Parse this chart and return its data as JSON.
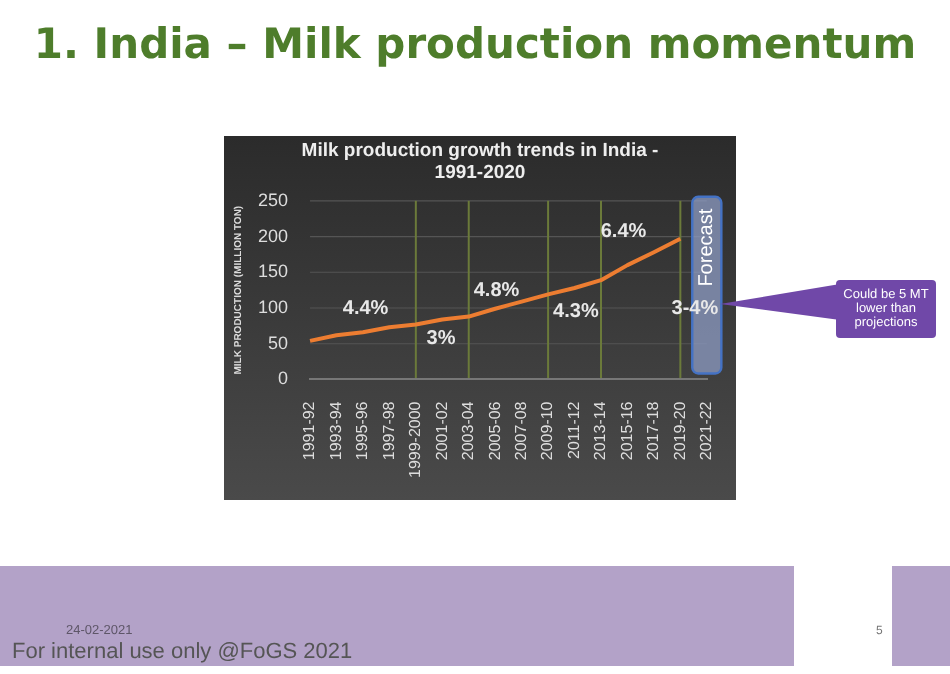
{
  "chart_data": {
    "type": "line",
    "title": "1. India – Milk production momentum",
    "subtitle": "Milk production growth trends in India - 1991-2020",
    "ylabel": "MILK PRODUCTION (MILLION TON)",
    "categories": [
      "1991-92",
      "1993-94",
      "1995-96",
      "1997-98",
      "1999-2000",
      "2001-02",
      "2003-04",
      "2005-06",
      "2007-08",
      "2009-10",
      "2011-12",
      "2013-14",
      "2015-16",
      "2017-18",
      "2019-20",
      "2021-22"
    ],
    "series": [
      {
        "color": "#ed7d31",
        "values": [
          54,
          62,
          66,
          73,
          77,
          84,
          88,
          99,
          109,
          119,
          128,
          139,
          160,
          178,
          197,
          null
        ]
      }
    ],
    "ylim": [
      0,
      250
    ],
    "yticks": [
      0,
      50,
      100,
      150,
      200,
      250
    ],
    "grid": "y",
    "legend": false,
    "ref_lines": [
      {
        "axis": "x",
        "value": "1999-2000",
        "color": "#6b7a3a"
      },
      {
        "axis": "x",
        "value": "2003-04",
        "color": "#6b7a3a"
      },
      {
        "axis": "x",
        "value": "2009-10",
        "color": "#6b7a3a"
      },
      {
        "axis": "x",
        "value": "2013-14",
        "color": "#6b7a3a"
      },
      {
        "axis": "x",
        "value": "2019-20",
        "color": "#6b7a3a"
      }
    ],
    "bands": [
      {
        "axis": "x",
        "from": "2019-20",
        "to": "2021-22",
        "label": "Forecast",
        "color": "#8e9cc4"
      }
    ],
    "annotations": [
      "4.4%",
      "3%",
      "4.8%",
      "4.3%",
      "6.4%",
      "3-4%",
      "Could be 5 MT lower than projections",
      "24-02-2021",
      "For internal use only @FoGS 2021",
      "5"
    ]
  }
}
